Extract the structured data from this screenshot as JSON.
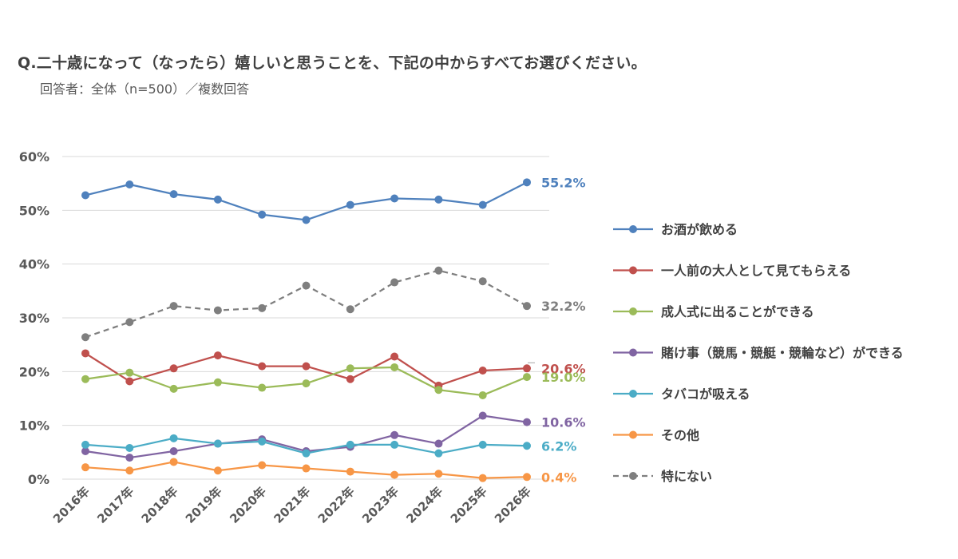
{
  "header": {
    "title": "Q.二十歳になって（なったら）嬉しいと思うことを、下記の中からすべてお選びください。",
    "subtitle": "回答者：全体（n=500）／複数回答"
  },
  "chart_data": {
    "type": "line",
    "title": "Q.二十歳になって（なったら）嬉しいと思うことを、下記の中からすべてお選びください。",
    "subtitle": "回答者：全体（n=500）／複数回答",
    "categories": [
      "2016年",
      "2017年",
      "2018年",
      "2019年",
      "2020年",
      "2021年",
      "2022年",
      "2023年",
      "2024年",
      "2025年",
      "2026年"
    ],
    "ylim": [
      0,
      60
    ],
    "yticks": [
      0,
      10,
      20,
      30,
      40,
      50,
      60
    ],
    "ytick_labels": [
      "0%",
      "10%",
      "20%",
      "30%",
      "40%",
      "50%",
      "60%"
    ],
    "grid": true,
    "legend_position": "right",
    "series": [
      {
        "name": "お酒が飲める",
        "color": "#4F81BD",
        "dashed": false,
        "end_label": "55.2%",
        "values": [
          52.8,
          54.8,
          53.0,
          52.0,
          49.2,
          48.2,
          51.0,
          52.2,
          52.0,
          51.0,
          55.2
        ]
      },
      {
        "name": "一人前の大人として見てもらえる",
        "color": "#C0504D",
        "dashed": false,
        "end_label": "20.6%",
        "values": [
          23.4,
          18.2,
          20.6,
          23.0,
          21.0,
          21.0,
          18.6,
          22.8,
          17.4,
          20.2,
          20.6
        ]
      },
      {
        "name": "成人式に出ることができる",
        "color": "#9BBB59",
        "dashed": false,
        "end_label": "19.0%",
        "values": [
          18.6,
          19.8,
          16.8,
          18.0,
          17.0,
          17.8,
          20.6,
          20.8,
          16.6,
          15.6,
          19.0
        ]
      },
      {
        "name": "賭け事（競馬・競艇・競輪など）ができる",
        "color": "#8064A2",
        "dashed": false,
        "end_label": "10.6%",
        "values": [
          5.2,
          4.0,
          5.2,
          6.6,
          7.4,
          5.2,
          6.0,
          8.2,
          6.6,
          11.8,
          10.6
        ]
      },
      {
        "name": "タバコが吸える",
        "color": "#4BACC6",
        "dashed": false,
        "end_label": "6.2%",
        "values": [
          6.4,
          5.8,
          7.6,
          6.6,
          7.0,
          4.8,
          6.4,
          6.4,
          4.8,
          6.4,
          6.2
        ]
      },
      {
        "name": "その他",
        "color": "#F79646",
        "dashed": false,
        "end_label": "0.4%",
        "values": [
          2.2,
          1.6,
          3.2,
          1.6,
          2.6,
          2.0,
          1.4,
          0.8,
          1.0,
          0.2,
          0.4
        ]
      },
      {
        "name": "特にない",
        "color": "#7F7F7F",
        "dashed": true,
        "end_label": "32.2%",
        "values": [
          26.4,
          29.2,
          32.2,
          31.4,
          31.8,
          36.0,
          31.6,
          36.6,
          38.8,
          36.8,
          32.2
        ]
      }
    ]
  }
}
